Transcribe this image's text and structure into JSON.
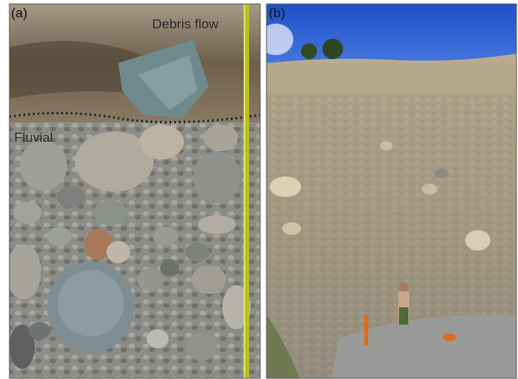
{
  "panels": [
    {
      "label": "(a)",
      "annotations": [
        "Debris flow",
        "Fluvial"
      ]
    },
    {
      "label": "(b)"
    }
  ]
}
